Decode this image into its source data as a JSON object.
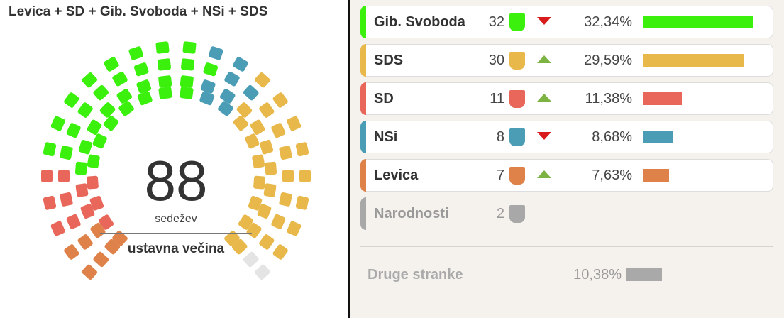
{
  "panel_title": "Levica + SD + Gib. Svoboda + NSi + SDS",
  "summary": {
    "seats": "88",
    "unit": "sedežev",
    "majority": "ustavna večina"
  },
  "colors": {
    "gib_svoboda": "#3cf00e",
    "sds": "#e8b84a",
    "sd": "#e8675a",
    "nsi": "#4a9db5",
    "levica": "#de824a",
    "narodnosti": "#a8a8a8",
    "empty": "#e4e4e4",
    "arrow_down": "#d81b1b",
    "arrow_up": "#7cb342"
  },
  "chart_data": {
    "type": "bar",
    "title": "Levica + SD + Gib. Svoboda + NSi + SDS",
    "seats_total_shown": 88,
    "parties": [
      {
        "name": "Gib. Svoboda",
        "seats": 32,
        "percent": 32.34,
        "percent_label": "32,34%",
        "trend": "down",
        "color": "#3cf00e",
        "in_coalition": true
      },
      {
        "name": "SDS",
        "seats": 30,
        "percent": 29.59,
        "percent_label": "29,59%",
        "trend": "up",
        "color": "#e8b84a",
        "in_coalition": true
      },
      {
        "name": "SD",
        "seats": 11,
        "percent": 11.38,
        "percent_label": "11,38%",
        "trend": "up",
        "color": "#e8675a",
        "in_coalition": true
      },
      {
        "name": "NSi",
        "seats": 8,
        "percent": 8.68,
        "percent_label": "8,68%",
        "trend": "down",
        "color": "#4a9db5",
        "in_coalition": true
      },
      {
        "name": "Levica",
        "seats": 7,
        "percent": 7.63,
        "percent_label": "7,63%",
        "trend": "up",
        "color": "#de824a",
        "in_coalition": true
      },
      {
        "name": "Narodnosti",
        "seats": 2,
        "percent": null,
        "percent_label": "",
        "trend": "",
        "color": "#a8a8a8",
        "in_coalition": false
      }
    ],
    "other": {
      "name": "Druge stranke",
      "percent": 10.38,
      "percent_label": "10,38%",
      "color": "#a9a9a9"
    },
    "hemicycle_order": [
      "Levica",
      "SD",
      "Gib. Svoboda",
      "NSi",
      "SDS",
      "Narodnosti"
    ],
    "xlim": [
      0,
      35
    ]
  }
}
